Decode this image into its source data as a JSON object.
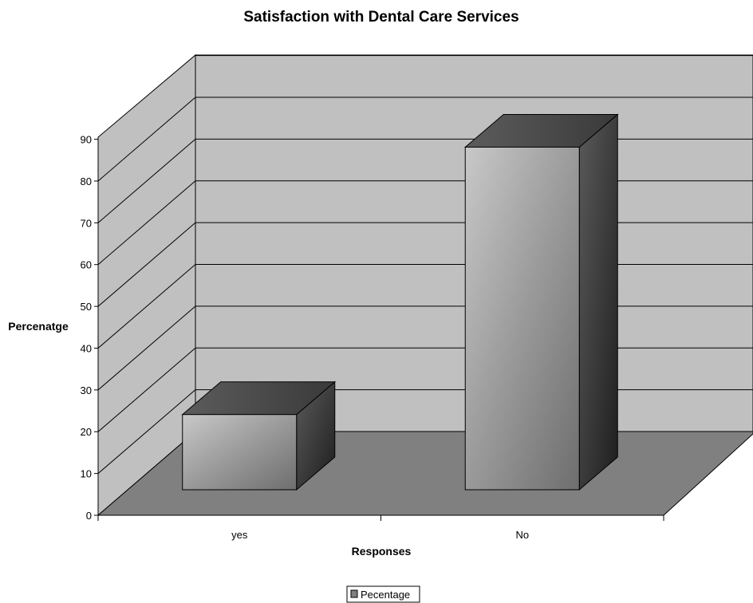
{
  "chart_data": {
    "type": "bar",
    "title": "Satisfaction with Dental Care Services",
    "xlabel": "Responses",
    "ylabel": "Percenatge",
    "categories": [
      "yes",
      "No"
    ],
    "series": [
      {
        "name": "Pecentage",
        "values": [
          18,
          82
        ]
      }
    ],
    "ylim": [
      0,
      90
    ],
    "yticks": [
      0,
      10,
      20,
      30,
      40,
      50,
      60,
      70,
      80,
      90
    ],
    "grid": true,
    "legend": "bottom",
    "style": "3d-column",
    "colors": {
      "wall": "#c0c0c0",
      "floor": "#808080",
      "bar": "#a0a0a0",
      "gridline": "#000000"
    }
  }
}
